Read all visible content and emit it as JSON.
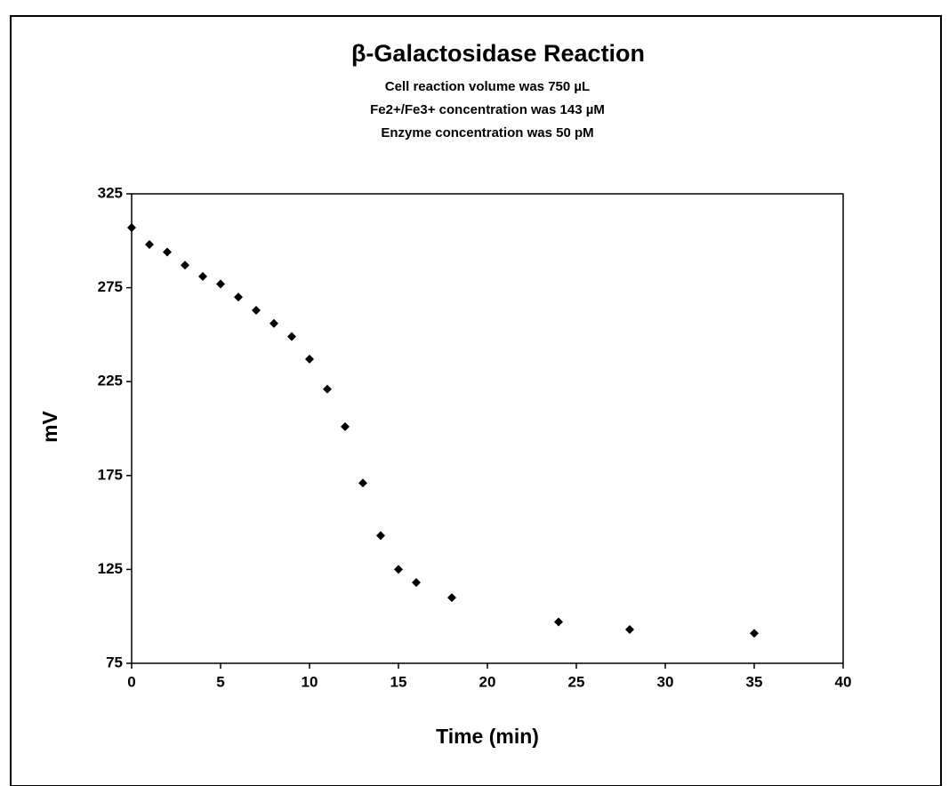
{
  "chart_data": {
    "type": "scatter",
    "title": "β-Galactosidase Reaction",
    "subtitle": [
      "Cell reaction volume was 750 µL",
      "Fe2+/Fe3+ concentration was 143 µM",
      "Enzyme concentration was 50 pM"
    ],
    "x_label": "Time (min)",
    "y_label": "mV",
    "x": [
      0,
      1,
      2,
      3,
      4,
      5,
      6,
      7,
      8,
      9,
      10,
      11,
      12,
      13,
      14,
      15,
      16,
      18,
      24,
      28,
      35
    ],
    "values": [
      307,
      298,
      294,
      287,
      281,
      277,
      270,
      263,
      256,
      249,
      237,
      221,
      201,
      171,
      143,
      125,
      118,
      110,
      97,
      93,
      91
    ],
    "color": "#000000",
    "xlim": [
      0,
      40
    ],
    "xticks": [
      0,
      5,
      10,
      15,
      20,
      25,
      30,
      35,
      40
    ],
    "ylim": [
      75,
      325
    ],
    "yticks": [
      75,
      125,
      175,
      225,
      275,
      325
    ],
    "grid": false
  }
}
